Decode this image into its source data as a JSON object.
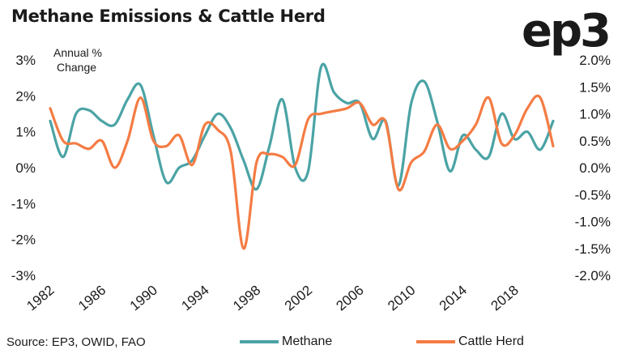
{
  "title": "Methane Emissions & Cattle Herd",
  "logo_text": "ep3",
  "unit_label": [
    "Annual %",
    "Change"
  ],
  "source": "Source: EP3, OWID, FAO",
  "colors": {
    "methane": "#4ba3a5",
    "cattle": "#f47c44"
  },
  "chart_data": {
    "type": "line",
    "title": "Methane Emissions & Cattle Herd",
    "xlabel": "",
    "ylabel": "Annual % Change",
    "x": [
      1982,
      1983,
      1984,
      1985,
      1986,
      1987,
      1988,
      1989,
      1990,
      1991,
      1992,
      1993,
      1994,
      1995,
      1996,
      1997,
      1998,
      1999,
      2000,
      2001,
      2002,
      2003,
      2004,
      2005,
      2006,
      2007,
      2008,
      2009,
      2010,
      2011,
      2012,
      2013,
      2014,
      2015,
      2016,
      2017,
      2018,
      2019,
      2020,
      2021
    ],
    "x_ticks": [
      1982,
      1986,
      1990,
      1994,
      1998,
      2002,
      2006,
      2010,
      2014,
      2018
    ],
    "y_left": {
      "ticks": [
        "3%",
        "2%",
        "1%",
        "0%",
        "-1%",
        "-2%",
        "-3%"
      ],
      "lim": [
        -3,
        3
      ]
    },
    "y_right": {
      "ticks": [
        "2.0%",
        "1.5%",
        "1.0%",
        "0.5%",
        "0.0%",
        "-0.5%",
        "-1.0%",
        "-1.5%",
        "-2.0%"
      ],
      "lim": [
        -2,
        2
      ]
    },
    "series": [
      {
        "name": "Methane",
        "axis": "left",
        "values": [
          1.3,
          0.3,
          1.5,
          1.6,
          1.3,
          1.2,
          1.9,
          2.3,
          0.9,
          -0.4,
          0.0,
          0.2,
          0.9,
          1.5,
          1.1,
          0.2,
          -0.6,
          0.6,
          1.9,
          0.0,
          -0.1,
          2.8,
          2.1,
          1.8,
          1.8,
          0.8,
          1.3,
          -0.5,
          1.8,
          2.4,
          1.3,
          -0.1,
          0.9,
          0.5,
          0.3,
          1.5,
          0.8,
          1.0,
          0.5,
          1.3
        ]
      },
      {
        "name": "Cattle Herd",
        "axis": "right",
        "values": [
          1.1,
          0.5,
          0.45,
          0.35,
          0.5,
          0.0,
          0.5,
          1.3,
          0.5,
          0.4,
          0.6,
          0.05,
          0.8,
          0.7,
          0.3,
          -1.5,
          0.1,
          0.25,
          0.2,
          0.05,
          0.9,
          1.0,
          1.05,
          1.1,
          1.2,
          0.8,
          0.85,
          -0.4,
          0.1,
          0.3,
          0.8,
          0.35,
          0.5,
          0.8,
          1.3,
          0.45,
          0.6,
          1.1,
          1.3,
          0.4
        ]
      }
    ],
    "grid": false,
    "legend": "bottom"
  }
}
